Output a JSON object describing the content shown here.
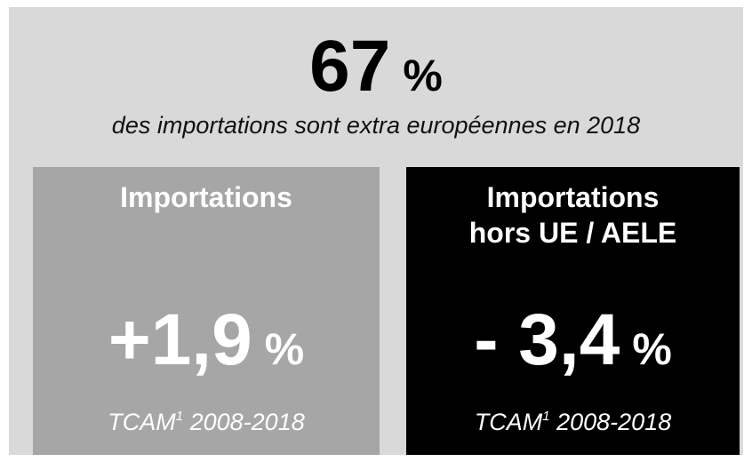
{
  "headline": {
    "value": "67",
    "unit": "%",
    "caption": "des importations sont extra européennes en 2018"
  },
  "panels": [
    {
      "title_lines": [
        "Importations"
      ],
      "value": "+1,9",
      "unit": "%",
      "note": "TCAM",
      "note_sup": "1",
      "note_period": "2008-2018"
    },
    {
      "title_lines": [
        "Importations",
        "hors UE / AELE"
      ],
      "value": "- 3,4",
      "unit": "%",
      "note": "TCAM",
      "note_sup": "1",
      "note_period": "2008-2018"
    }
  ]
}
